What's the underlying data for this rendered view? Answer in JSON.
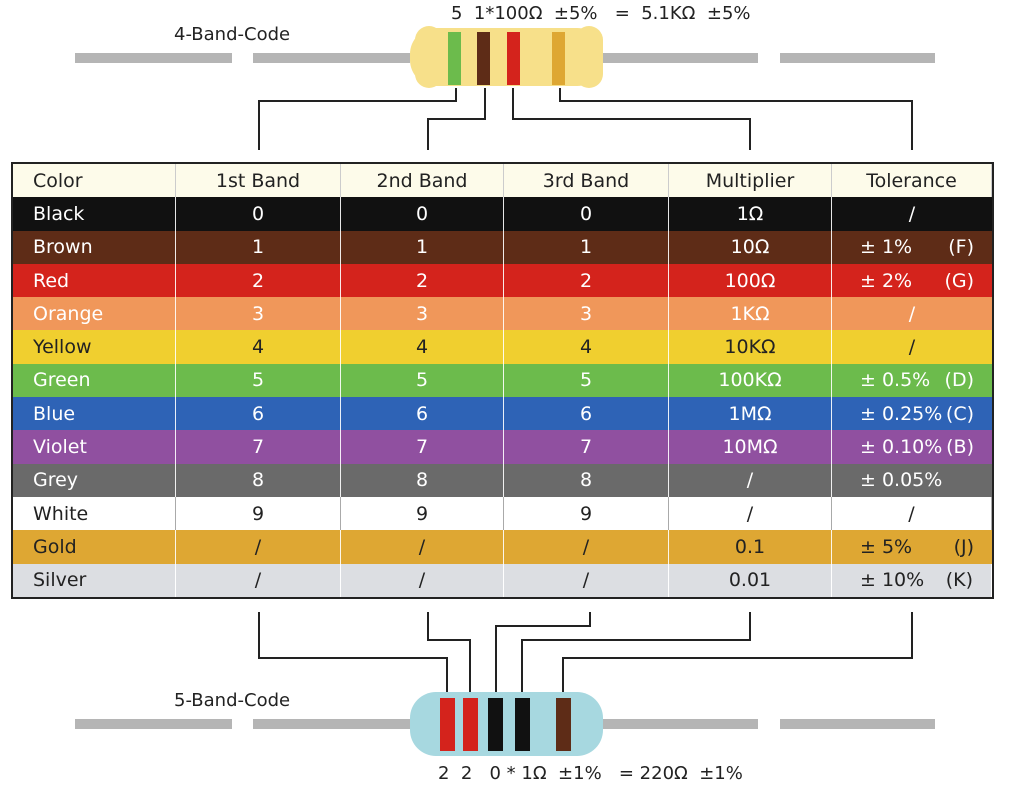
{
  "top": {
    "label": "4-Band-Code",
    "formula": "5  1*100Ω  ±5%   =  5.1KΩ  ±5%"
  },
  "bottom": {
    "label": "5-Band-Code",
    "formula": "2  2   0 * 1Ω  ±1%   = 220Ω  ±1%"
  },
  "table": {
    "headers": [
      "Color",
      "1st Band",
      "2nd Band",
      "3rd Band",
      "Multiplier",
      "Tolerance"
    ],
    "rows": [
      {
        "color": "Black",
        "bg": "#111111",
        "fg": "#ffffff",
        "b1": "0",
        "b2": "0",
        "b3": "0",
        "mult": "1Ω",
        "tol": "/",
        "code": ""
      },
      {
        "color": "Brown",
        "bg": "#5e2c17",
        "fg": "#ffffff",
        "b1": "1",
        "b2": "1",
        "b3": "1",
        "mult": "10Ω",
        "tol": "± 1%",
        "code": "(F)"
      },
      {
        "color": "Red",
        "bg": "#d4231c",
        "fg": "#ffffff",
        "b1": "2",
        "b2": "2",
        "b3": "2",
        "mult": "100Ω",
        "tol": "± 2%",
        "code": "(G)"
      },
      {
        "color": "Orange",
        "bg": "#f0975a",
        "fg": "#ffffff",
        "b1": "3",
        "b2": "3",
        "b3": "3",
        "mult": "1KΩ",
        "tol": "/",
        "code": ""
      },
      {
        "color": "Yellow",
        "bg": "#f0cf2f",
        "fg": "#222222",
        "b1": "4",
        "b2": "4",
        "b3": "4",
        "mult": "10KΩ",
        "tol": "/",
        "code": ""
      },
      {
        "color": "Green",
        "bg": "#6cbb4c",
        "fg": "#ffffff",
        "b1": "5",
        "b2": "5",
        "b3": "5",
        "mult": "100KΩ",
        "tol": "± 0.5%",
        "code": "(D)"
      },
      {
        "color": "Blue",
        "bg": "#2e63b6",
        "fg": "#ffffff",
        "b1": "6",
        "b2": "6",
        "b3": "6",
        "mult": "1MΩ",
        "tol": "± 0.25%",
        "code": "(C)"
      },
      {
        "color": "Violet",
        "bg": "#9050a0",
        "fg": "#ffffff",
        "b1": "7",
        "b2": "7",
        "b3": "7",
        "mult": "10MΩ",
        "tol": "± 0.10%",
        "code": "(B)"
      },
      {
        "color": "Grey",
        "bg": "#6a6a6a",
        "fg": "#ffffff",
        "b1": "8",
        "b2": "8",
        "b3": "8",
        "mult": "/",
        "tol": "± 0.05%",
        "code": ""
      },
      {
        "color": "White",
        "bg": "#ffffff",
        "fg": "#222222",
        "b1": "9",
        "b2": "9",
        "b3": "9",
        "mult": "/",
        "tol": "/",
        "code": ""
      },
      {
        "color": "Gold",
        "bg": "#dea733",
        "fg": "#222222",
        "b1": "/",
        "b2": "/",
        "b3": "/",
        "mult": "0.1",
        "tol": "± 5%",
        "code": "(J)"
      },
      {
        "color": "Silver",
        "bg": "#dcdee2",
        "fg": "#222222",
        "b1": "/",
        "b2": "/",
        "b3": "/",
        "mult": "0.01",
        "tol": "± 10%",
        "code": "(K)"
      }
    ]
  },
  "colors": {
    "header_bg": "#fdfbea",
    "lead_grey": "#b5b5b5",
    "resistor4_body": "#f7e08a",
    "resistor5_body": "#a7d8e0",
    "connector": "#222222"
  }
}
